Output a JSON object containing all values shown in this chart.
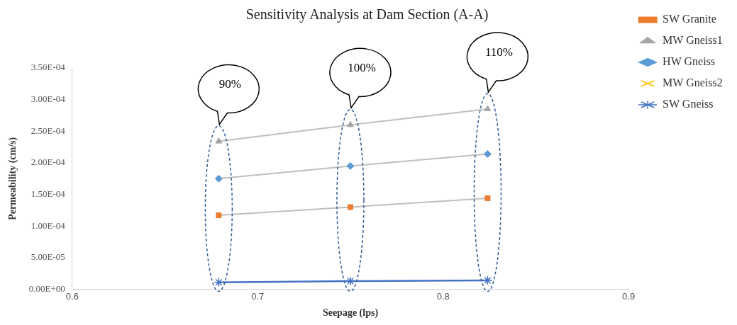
{
  "chart_data": {
    "type": "line",
    "title": "Sensitivity Analysis at Dam Section (A-A)",
    "xlabel": "Seepage (lps)",
    "ylabel": "Permeability (cm/s)",
    "x": [
      0.679,
      0.75,
      0.824
    ],
    "series": [
      {
        "name": "SW Granite",
        "color": "#ed7d31",
        "marker": "square",
        "values": [
          0.000117,
          0.00013,
          0.000144
        ]
      },
      {
        "name": "MW Gneiss1",
        "color": "#a5a5a5",
        "marker": "triangle",
        "values": [
          0.000234,
          0.00026,
          0.000285
        ]
      },
      {
        "name": "HW Gneiss",
        "color": "#5b9bd5",
        "marker": "diamond",
        "values": [
          0.000175,
          0.000195,
          0.000214
        ]
      },
      {
        "name": "MW Gneiss2",
        "color": "#ffc000",
        "marker": "cross",
        "values": [
          null,
          null,
          null
        ]
      },
      {
        "name": "SW Gneiss",
        "color": "#4472c4",
        "marker": "cross",
        "values": [
          1.1e-05,
          1.3e-05,
          1.4e-05
        ]
      }
    ],
    "xlim": [
      0.6,
      0.9
    ],
    "xticks": [
      0.6,
      0.7,
      0.8,
      0.9
    ],
    "ylim": [
      0,
      0.00035
    ],
    "yticks": [
      {
        "value": 0,
        "label": "0.00E+00"
      },
      {
        "value": 5e-05,
        "label": "5.00E-05"
      },
      {
        "value": 0.0001,
        "label": "1.00E-04"
      },
      {
        "value": 0.00015,
        "label": "1.50E-04"
      },
      {
        "value": 0.0002,
        "label": "2.00E-04"
      },
      {
        "value": 0.00025,
        "label": "2.50E-04"
      },
      {
        "value": 0.0003,
        "label": "3.00E-04"
      },
      {
        "value": 0.00035,
        "label": "3.50E-04"
      }
    ],
    "annotations": [
      "90%",
      "100%",
      "110%"
    ],
    "grid": false,
    "legend": "right",
    "line_style": "solid"
  }
}
